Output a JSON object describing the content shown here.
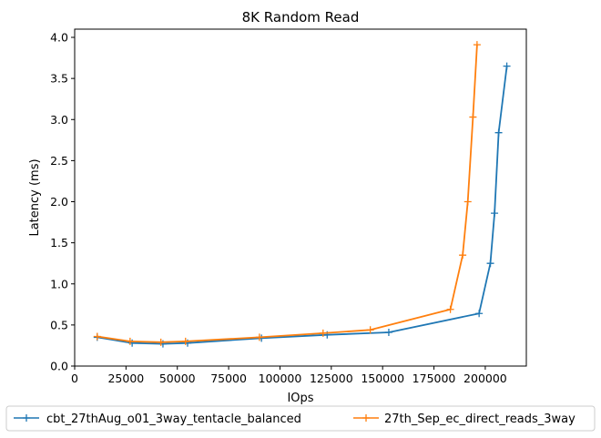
{
  "chart_data": {
    "type": "line",
    "title": "8K  Random Read",
    "xlabel": "IOps",
    "ylabel": "Latency (ms)",
    "xlim": [
      0,
      220000
    ],
    "ylim": [
      0,
      4.1
    ],
    "xticks": [
      0,
      25000,
      50000,
      75000,
      100000,
      125000,
      150000,
      175000,
      200000
    ],
    "yticks": [
      0.0,
      0.5,
      1.0,
      1.5,
      2.0,
      2.5,
      3.0,
      3.5,
      4.0
    ],
    "xtick_labels": [
      "0",
      "25000",
      "50000",
      "75000",
      "100000",
      "125000",
      "150000",
      "175000",
      "200000"
    ],
    "ytick_labels": [
      "0.0",
      "0.5",
      "1.0",
      "1.5",
      "2.0",
      "2.5",
      "3.0",
      "3.5",
      "4.0"
    ],
    "grid": false,
    "legend_position": "below",
    "series": [
      {
        "name": "cbt_27thAug_o01_3way_tentacle_balanced",
        "color": "#1f77b4",
        "marker": "plus",
        "x": [
          11000,
          28000,
          43000,
          55000,
          91000,
          123000,
          153000,
          197000,
          202500,
          204500,
          206500,
          210500
        ],
        "y": [
          0.35,
          0.28,
          0.27,
          0.28,
          0.34,
          0.38,
          0.41,
          0.64,
          1.25,
          1.86,
          2.84,
          3.65
        ]
      },
      {
        "name": "27th_Sep_ec_direct_reads_3way",
        "color": "#ff7f0e",
        "marker": "plus",
        "x": [
          11000,
          27000,
          42000,
          54000,
          90000,
          121000,
          144000,
          183000,
          189000,
          191500,
          194000,
          196000
        ],
        "y": [
          0.36,
          0.3,
          0.29,
          0.3,
          0.35,
          0.4,
          0.44,
          0.69,
          1.35,
          2.0,
          3.03,
          3.91
        ]
      }
    ]
  }
}
